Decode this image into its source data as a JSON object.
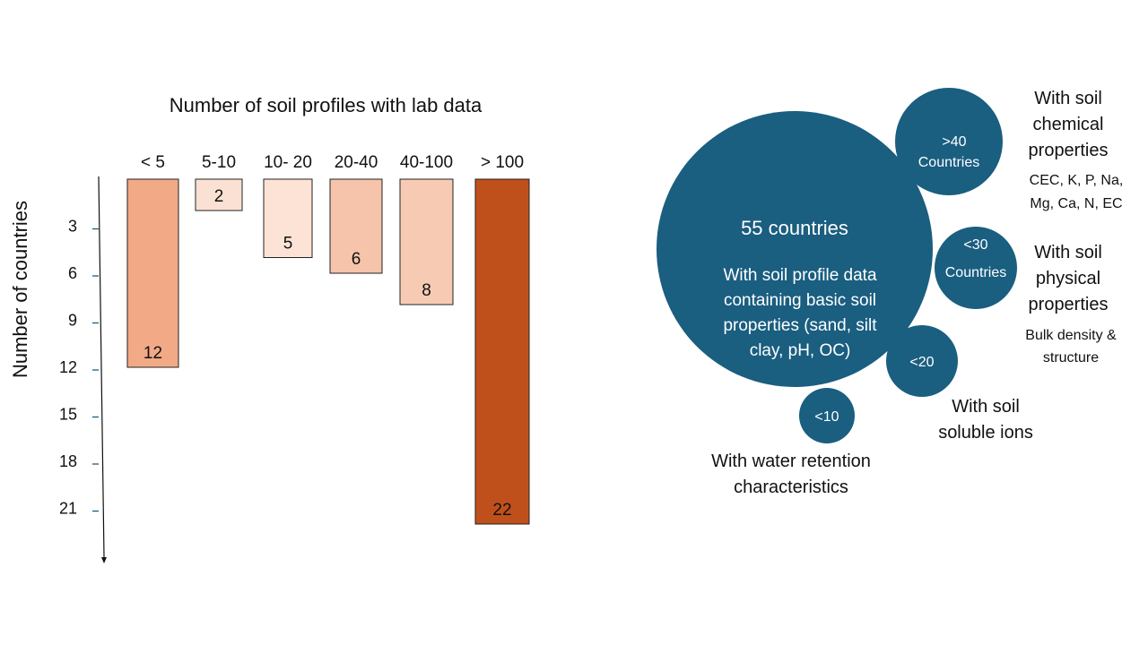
{
  "chart_data": {
    "type": "bar",
    "title": "Number of soil profiles with lab data",
    "ylabel": "Number of countries",
    "y_axis_inverted": true,
    "yticks": [
      3,
      6,
      9,
      12,
      15,
      18,
      21
    ],
    "ylim": [
      0,
      24
    ],
    "categories": [
      "< 5",
      "5-10",
      "10- 20",
      "20-40",
      "40-100",
      "> 100"
    ],
    "values": [
      12,
      2,
      5,
      6,
      8,
      22
    ],
    "value_labels": [
      "12",
      "2",
      "5",
      "6",
      "8",
      "22"
    ],
    "colors": [
      "#f2a985",
      "#fbe1d3",
      "#fde3d6",
      "#f5c4aa",
      "#f7cbb3",
      "#c0501b"
    ]
  },
  "bubble_data": {
    "color": "#1a5e80",
    "main": {
      "headline": "55 countries",
      "lines": [
        "With soil profile data",
        "containing basic soil",
        "properties (sand, silt",
        "clay, pH, OC)"
      ]
    },
    "bubbles": [
      {
        "value_lines": [
          ">40",
          "Countries"
        ],
        "label_lines": [
          "With soil",
          "chemical",
          "properties"
        ],
        "detail_lines": [
          "CEC, K, P, Na,",
          "Mg, Ca, N, EC"
        ]
      },
      {
        "value_lines": [
          "<30",
          "Countries"
        ],
        "label_lines": [
          "With soil",
          "physical",
          "properties"
        ],
        "detail_lines": [
          "Bulk density &",
          "structure"
        ]
      },
      {
        "value_lines": [
          "<20"
        ],
        "label_lines": [
          "With soil",
          "soluble ions"
        ],
        "detail_lines": []
      },
      {
        "value_lines": [
          "<10"
        ],
        "label_lines": [
          "With water retention",
          "characteristics"
        ],
        "detail_lines": []
      }
    ]
  }
}
